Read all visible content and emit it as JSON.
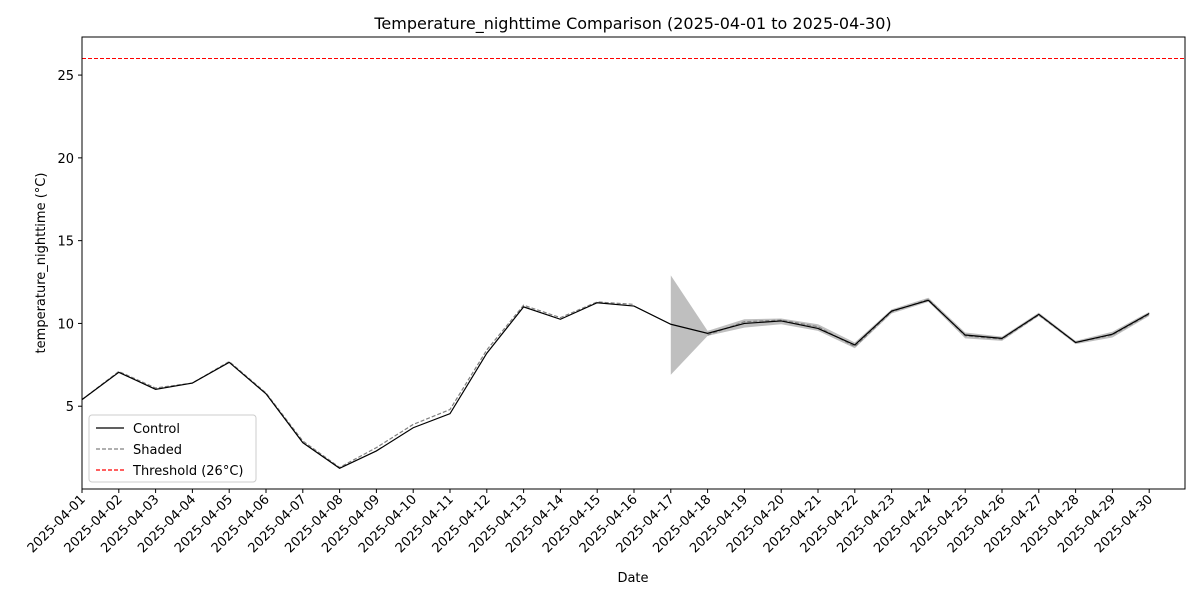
{
  "chart_data": {
    "type": "line",
    "title": "Temperature_nighttime Comparison (2025-04-01 to 2025-04-30)",
    "xlabel": "Date",
    "ylabel": "temperature_nighttime (°C)",
    "ylim": [
      0,
      27.3
    ],
    "yticks": [
      5,
      10,
      15,
      20,
      25
    ],
    "x": [
      "2025-04-01",
      "2025-04-02",
      "2025-04-03",
      "2025-04-04",
      "2025-04-05",
      "2025-04-06",
      "2025-04-07",
      "2025-04-08",
      "2025-04-09",
      "2025-04-10",
      "2025-04-11",
      "2025-04-12",
      "2025-04-13",
      "2025-04-14",
      "2025-04-15",
      "2025-04-16",
      "2025-04-17",
      "2025-04-18",
      "2025-04-19",
      "2025-04-20",
      "2025-04-21",
      "2025-04-22",
      "2025-04-23",
      "2025-04-24",
      "2025-04-25",
      "2025-04-26",
      "2025-04-27",
      "2025-04-28",
      "2025-04-29",
      "2025-04-30"
    ],
    "series": [
      {
        "name": "Control",
        "color": "#000000",
        "style": "solid",
        "values": [
          5.4,
          7.05,
          6.02,
          6.4,
          7.65,
          5.75,
          2.8,
          1.25,
          2.3,
          3.7,
          4.55,
          8.2,
          11.0,
          10.25,
          11.25,
          11.05,
          9.95,
          9.4,
          10.0,
          10.15,
          9.7,
          8.7,
          10.75,
          11.4,
          9.3,
          9.1,
          10.55,
          8.85,
          9.35,
          10.6
        ]
      },
      {
        "name": "Shaded",
        "color": "#808080",
        "style": "dashed",
        "values": [
          5.4,
          7.1,
          6.1,
          6.4,
          7.7,
          5.8,
          2.9,
          1.3,
          2.5,
          3.9,
          4.8,
          8.4,
          11.1,
          10.35,
          11.3,
          11.15,
          null,
          9.3,
          10.1,
          10.2,
          9.8,
          8.6,
          10.7,
          11.45,
          9.25,
          9.05,
          10.5,
          8.85,
          9.3,
          10.55
        ]
      }
    ],
    "band": {
      "color": "#808080",
      "start_index": 16,
      "lower": [
        6.9,
        9.25,
        9.75,
        9.95,
        9.55,
        8.5,
        10.6,
        11.3,
        9.1,
        8.95,
        10.45,
        8.75,
        9.15,
        10.45
      ],
      "upper": [
        12.9,
        9.55,
        10.25,
        10.3,
        9.95,
        8.85,
        10.85,
        11.55,
        9.45,
        9.2,
        10.65,
        8.95,
        9.5,
        10.7
      ]
    },
    "threshold": {
      "name": "Threshold (26°C)",
      "value": 26,
      "color": "#ff0000",
      "style": "dashed"
    },
    "legend": {
      "position": "lower-left"
    },
    "grid": false
  }
}
